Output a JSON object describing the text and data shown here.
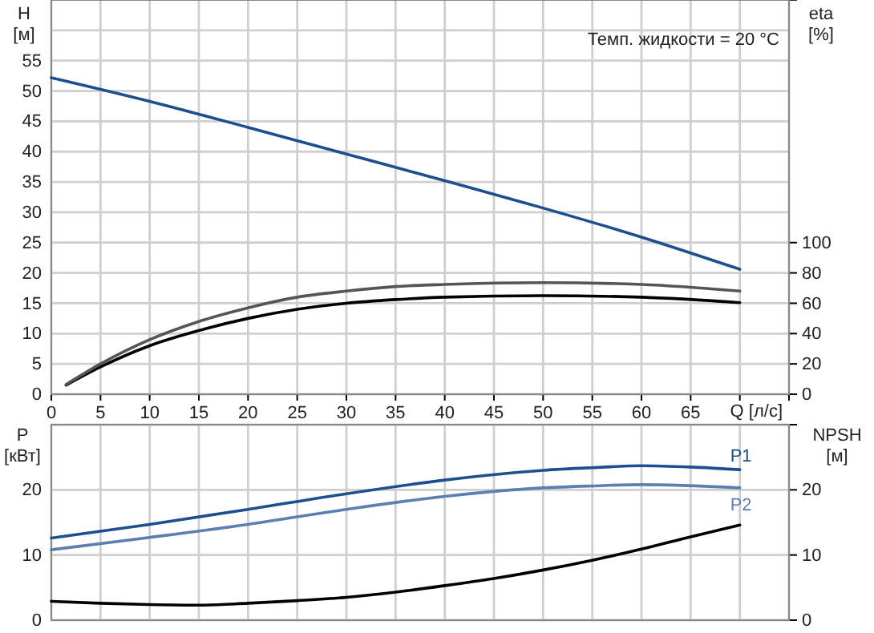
{
  "chart_data": [
    {
      "type": "line",
      "xlabel": "Q [л/с]",
      "ylabel": "H [м]",
      "y2label": "eta [%]",
      "annotations": [
        "Темп. жидкости = 20 °C"
      ],
      "xlim": [
        0,
        75
      ],
      "xticks": [
        0,
        5,
        10,
        15,
        20,
        25,
        30,
        35,
        40,
        45,
        50,
        55,
        60,
        65,
        {
          "value": 70,
          "label": null
        },
        {
          "value": 75,
          "label": null
        }
      ],
      "ylim": [
        0,
        65
      ],
      "yticks": [
        0,
        5,
        10,
        15,
        20,
        25,
        30,
        35,
        40,
        45,
        50,
        55,
        {
          "value": 60,
          "label": null
        }
      ],
      "y2lim": [
        0,
        260
      ],
      "y2ticks": [
        0,
        20,
        40,
        60,
        80,
        100
      ],
      "grid": true,
      "series": [
        {
          "color": "#1c4f8f",
          "x": [
            0,
            10,
            20,
            30,
            40,
            50,
            60,
            70
          ],
          "values": [
            52.2,
            48.3,
            44,
            39.6,
            35.2,
            30.7,
            25.9,
            20.6
          ]
        },
        {
          "color": "#000000",
          "axis": "y2",
          "x": [
            1.5,
            5,
            10,
            15,
            20,
            25,
            30,
            35,
            40,
            50,
            60,
            70
          ],
          "values": [
            6,
            18,
            32,
            42,
            50,
            56,
            60,
            62.4,
            64,
            65,
            64,
            60.4
          ]
        },
        {
          "color": "#555555",
          "axis": "y2",
          "x": [
            1.5,
            5,
            10,
            15,
            20,
            25,
            30,
            35,
            40,
            50,
            60,
            70
          ],
          "values": [
            6.4,
            20,
            36,
            48,
            57,
            64,
            68,
            71,
            72.4,
            73.6,
            72.4,
            68
          ]
        }
      ]
    },
    {
      "type": "line",
      "ylabel": "P [кВт]",
      "y2label": "NPSH [м]",
      "tick_labels": "y",
      "xlim": [
        0,
        75
      ],
      "xticks": [
        0,
        5,
        10,
        15,
        20,
        25,
        30,
        35,
        40,
        45,
        50,
        55,
        60,
        65,
        70,
        75
      ],
      "ylim": [
        0,
        30
      ],
      "yticks": [
        0,
        10,
        20,
        {
          "value": 30,
          "label": null
        }
      ],
      "y2lim": [
        0,
        30
      ],
      "y2ticks": [
        0,
        10,
        20,
        {
          "value": 30,
          "label": null
        }
      ],
      "grid": true,
      "series": [
        {
          "name": "P1",
          "color": "#1c4f8f",
          "x": [
            0,
            10,
            20,
            30,
            40,
            50,
            55,
            60,
            65,
            70
          ],
          "values": [
            12.6,
            14.7,
            17,
            19.4,
            21.5,
            23,
            23.4,
            23.7,
            23.5,
            23.1
          ]
        },
        {
          "name": "P2",
          "color": "#5a7fb0",
          "x": [
            0,
            10,
            20,
            30,
            40,
            50,
            55,
            60,
            70
          ],
          "values": [
            10.8,
            12.7,
            14.7,
            17,
            19,
            20.3,
            20.6,
            20.8,
            20.3
          ]
        },
        {
          "color": "#000000",
          "axis": "y2",
          "x": [
            0,
            5,
            10,
            15,
            20,
            25,
            30,
            35,
            40,
            45,
            50,
            55,
            60,
            65,
            70
          ],
          "values": [
            2.9,
            2.6,
            2.4,
            2.3,
            2.6,
            3,
            3.5,
            4.3,
            5.3,
            6.4,
            7.7,
            9.2,
            10.9,
            12.8,
            14.6
          ]
        }
      ]
    }
  ]
}
